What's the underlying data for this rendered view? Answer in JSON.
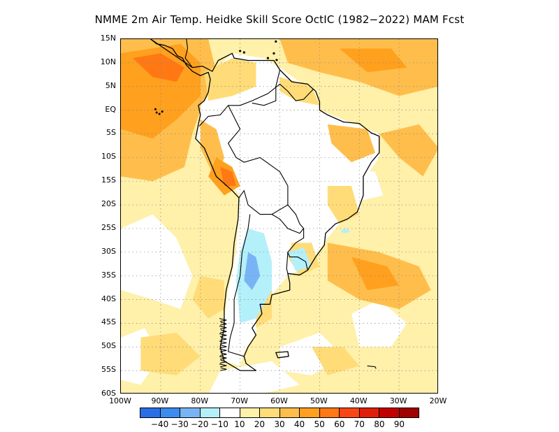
{
  "title": "NMME  2m Air Temp. Heidke Skill Score OctIC (1982−2022) MAM Fcst",
  "lat_labels": [
    "15N",
    "10N",
    "5N",
    "EQ",
    "5S",
    "10S",
    "15S",
    "20S",
    "25S",
    "30S",
    "35S",
    "40S",
    "45S",
    "50S",
    "55S",
    "60S"
  ],
  "lon_labels": [
    "100W",
    "90W",
    "80W",
    "70W",
    "60W",
    "50W",
    "40W",
    "30W",
    "20W"
  ],
  "colorbar": {
    "colors": [
      "#2a6ee6",
      "#3c8cf0",
      "#78b4f5",
      "#b4f0fa",
      "#ffffff",
      "#fff0aa",
      "#ffdc78",
      "#ffbe4b",
      "#ffa01e",
      "#ff7814",
      "#fa4614",
      "#e11e0a",
      "#c30000",
      "#a00000"
    ],
    "labels": [
      "−40",
      "−30",
      "−20",
      "−10",
      "10",
      "20",
      "30",
      "40",
      "50",
      "60",
      "70",
      "80",
      "90"
    ]
  },
  "map": {
    "type": "filled-contour map",
    "variable": "2m Air Temp. Heidke Skill Score",
    "lat_range": [
      "60S",
      "15N"
    ],
    "lon_range": [
      "100W",
      "20W"
    ],
    "grid": true,
    "coastline_color": "#000000",
    "scale_colors": {
      "sea_light": "#fff0aa",
      "sea_mid": "#ffdc78",
      "warm": "#ffbe4b",
      "hot": "#ffa01e",
      "very_hot": "#ff7814",
      "cool": "#b4f0fa",
      "cooler": "#78b4f5"
    }
  }
}
